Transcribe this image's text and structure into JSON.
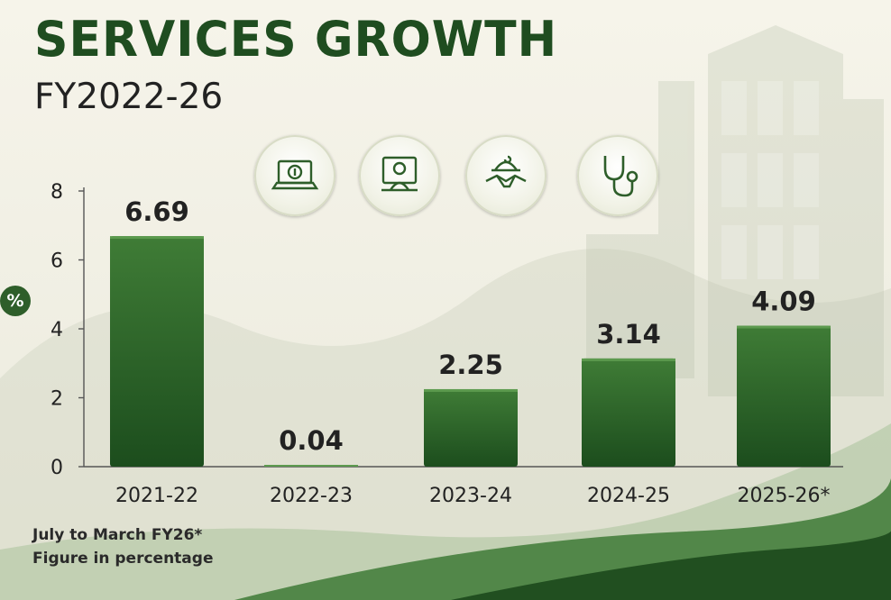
{
  "header": {
    "title": "SERVICES GROWTH",
    "subtitle": "FY2022-26"
  },
  "icons": [
    "laptop-coin-icon",
    "person-at-desk-icon",
    "handshake-mosque-icon",
    "stethoscope-icon"
  ],
  "colors": {
    "title": "#1f4d20",
    "bar_top": "#3f7c36",
    "bar_bottom": "#1c4d1d",
    "accent": "#2e5e2a"
  },
  "unit_badge": "%",
  "footnotes": [
    "July to March FY26*",
    "Figure in percentage"
  ],
  "chart_data": {
    "type": "bar",
    "title": "SERVICES GROWTH",
    "subtitle": "FY2022-26",
    "categories": [
      "2021-22",
      "2022-23",
      "2023-24",
      "2024-25",
      "2025-26*"
    ],
    "values": [
      6.69,
      0.04,
      2.25,
      3.14,
      4.09
    ],
    "data_labels": [
      "6.69",
      "0.04",
      "2.25",
      "3.14",
      "4.09"
    ],
    "ylabel": "%",
    "ylim": [
      0,
      8
    ],
    "yticks": [
      0,
      2,
      4,
      6,
      8
    ],
    "grid": false,
    "legend": "none"
  }
}
